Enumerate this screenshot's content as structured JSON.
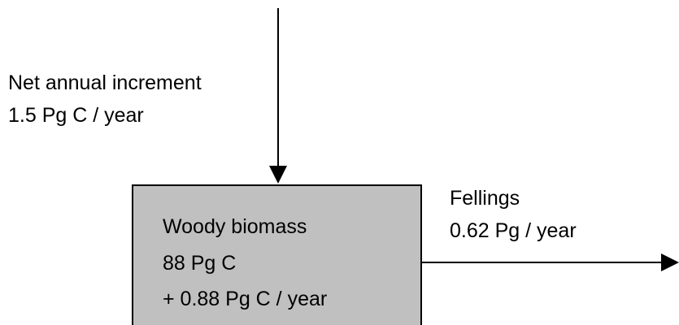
{
  "inflow": {
    "label": "Net annual increment",
    "rate": "1.5 Pg C / year"
  },
  "stock": {
    "label": "Woody biomass",
    "amount": "88 Pg C",
    "change": "+ 0.88 Pg C / year"
  },
  "outflow": {
    "label": "Fellings",
    "rate": "0.62 Pg / year"
  }
}
